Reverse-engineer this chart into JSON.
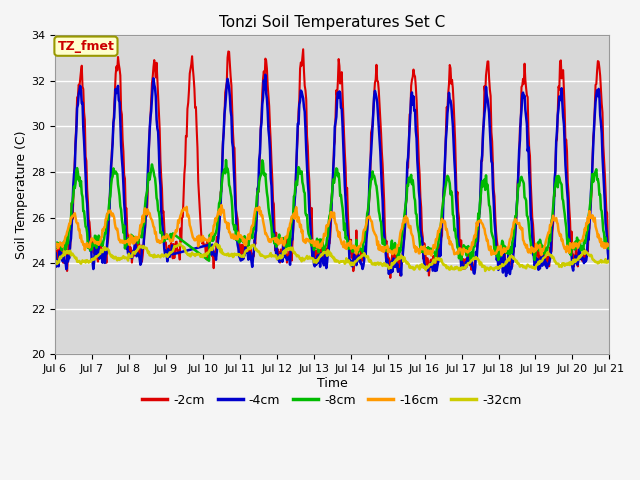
{
  "title": "Tonzi Soil Temperatures Set C",
  "xlabel": "Time",
  "ylabel": "Soil Temperature (C)",
  "ylim": [
    20,
    34
  ],
  "annotation": "TZ_fmet",
  "series": {
    "-2cm": {
      "color": "#dd0000",
      "lw": 1.5
    },
    "-4cm": {
      "color": "#0000cc",
      "lw": 1.8
    },
    "-8cm": {
      "color": "#00bb00",
      "lw": 1.8
    },
    "-16cm": {
      "color": "#ff9900",
      "lw": 1.8
    },
    "-32cm": {
      "color": "#cccc00",
      "lw": 1.8
    }
  },
  "xtick_labels": [
    "Jul 6",
    "Jul 7",
    "Jul 8",
    "Jul 9",
    "Jul 10",
    "Jul 11",
    "Jul 12",
    "Jul 13",
    "Jul 14",
    "Jul 15",
    "Jul 16",
    "Jul 17",
    "Jul 18",
    "Jul 19",
    "Jul 20",
    "Jul 21"
  ],
  "n_days": 15,
  "pts_per_day": 48,
  "plot_bg": "#d8d8d8",
  "fig_bg": "#f5f5f5",
  "legend_order": [
    "-2cm",
    "-4cm",
    "-8cm",
    "-16cm",
    "-32cm"
  ]
}
